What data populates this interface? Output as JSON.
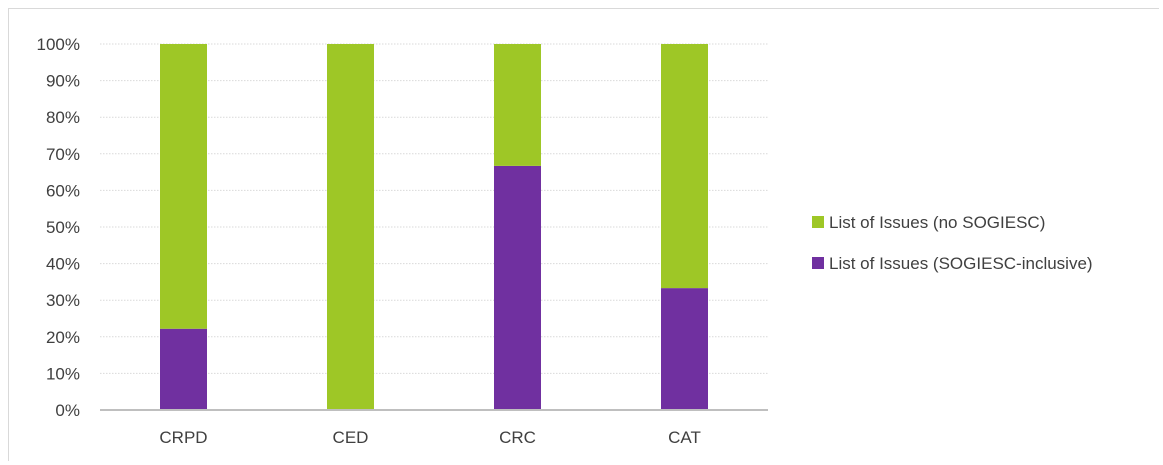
{
  "chart_data": {
    "type": "bar",
    "stacked": true,
    "normalized": true,
    "title": "",
    "xlabel": "",
    "ylabel": "",
    "categories": [
      "CRPD",
      "CED",
      "CRC",
      "CAT"
    ],
    "series": [
      {
        "name": "List of Issues (SOGIESC-inclusive)",
        "color": "#7030a0",
        "values": [
          22.2,
          0,
          66.7,
          33.3
        ]
      },
      {
        "name": "List of Issues (no SOGIESC)",
        "color": "#9ec726",
        "values": [
          77.8,
          100,
          33.3,
          66.7
        ]
      }
    ],
    "ylim": [
      0,
      100
    ],
    "yticks": [
      "0%",
      "10%",
      "20%",
      "30%",
      "40%",
      "50%",
      "60%",
      "70%",
      "80%",
      "90%",
      "100%"
    ],
    "grid": true,
    "legend": {
      "position": "right",
      "entries": [
        "List of Issues (no SOGIESC)",
        "List of Issues (SOGIESC-inclusive)"
      ]
    }
  }
}
